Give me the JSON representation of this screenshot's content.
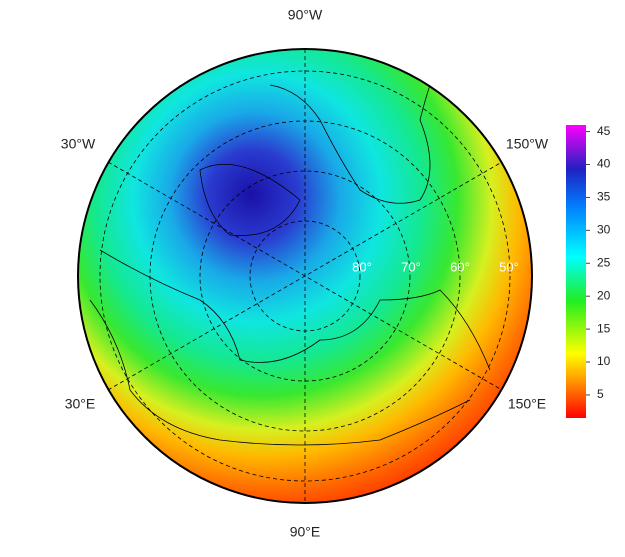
{
  "map": {
    "longitude_labels": [
      "90°W",
      "30°W",
      "150°W",
      "30°E",
      "150°E",
      "90°E"
    ],
    "latitude_labels": [
      "80°",
      "70°",
      "60°",
      "50°"
    ],
    "colorbar": {
      "range": [
        1.5,
        46
      ],
      "ticks": [
        5,
        10,
        15,
        20,
        25,
        30,
        35,
        40,
        45
      ]
    }
  }
}
